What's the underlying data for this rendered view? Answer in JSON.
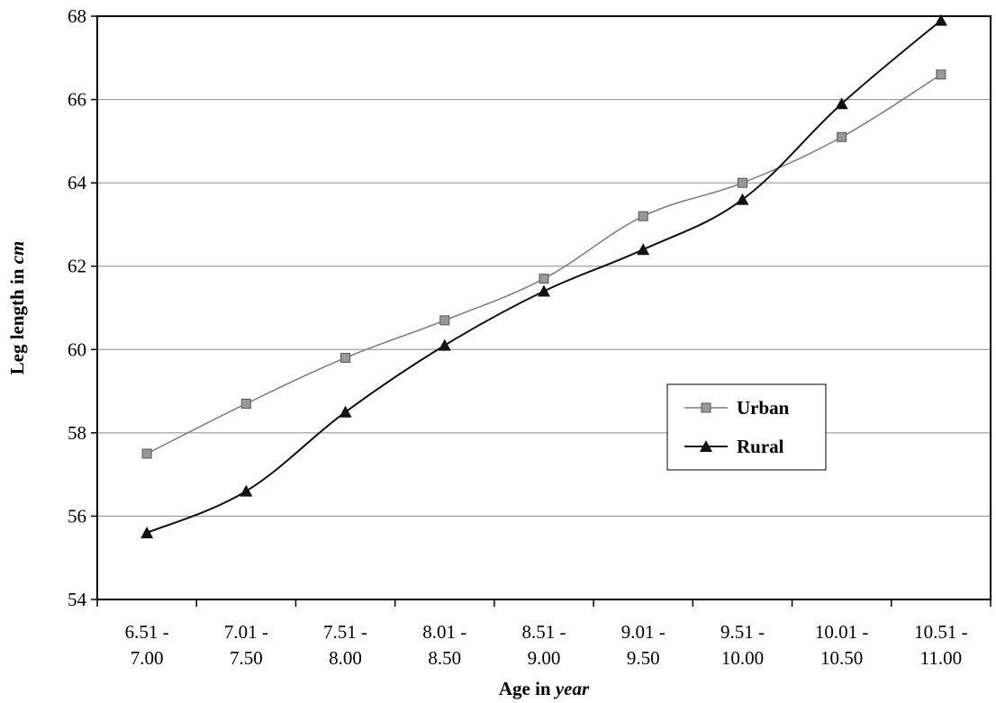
{
  "chart_data": {
    "type": "line",
    "categories": [
      [
        "6.51 -",
        "7.00"
      ],
      [
        "7.01 -",
        "7.50"
      ],
      [
        "7.51 -",
        "8.00"
      ],
      [
        "8.01 -",
        "8.50"
      ],
      [
        "8.51 -",
        "9.00"
      ],
      [
        "9.01 -",
        "9.50"
      ],
      [
        "9.51 -",
        "10.00"
      ],
      [
        "10.01 -",
        "10.50"
      ],
      [
        "10.51 -",
        "11.00"
      ]
    ],
    "series": [
      {
        "name": "Urban",
        "marker": "square",
        "color": "#7a7a7a",
        "values": [
          57.5,
          58.7,
          59.8,
          60.7,
          61.7,
          63.2,
          64.0,
          65.1,
          66.6
        ]
      },
      {
        "name": "Rural",
        "marker": "triangle",
        "color": "#111111",
        "values": [
          55.6,
          56.6,
          58.5,
          60.1,
          61.4,
          62.4,
          63.6,
          65.9,
          67.9
        ]
      }
    ],
    "xlabel": {
      "prefix": "Age in ",
      "unit": "year"
    },
    "ylabel": {
      "prefix": "Leg length in ",
      "unit": "cm"
    },
    "ylim": [
      54,
      68
    ],
    "yticks": [
      54,
      56,
      58,
      60,
      62,
      64,
      66,
      68
    ],
    "grid": true,
    "legend_position": "right-middle"
  }
}
